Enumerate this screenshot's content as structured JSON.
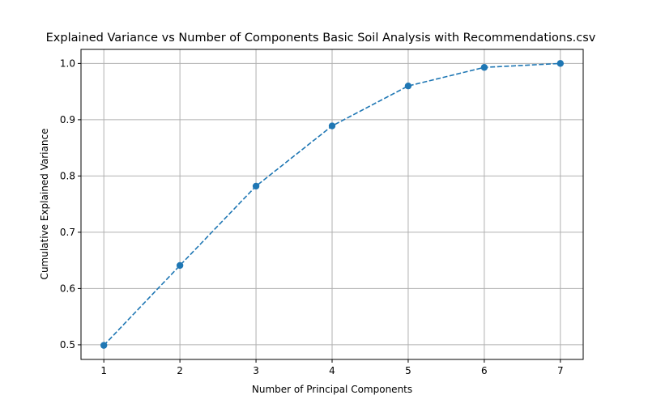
{
  "chart_data": {
    "type": "line",
    "title": "Explained Variance vs Number of Components Basic Soil Analysis with Recommendations.csv",
    "xlabel": "Number of Principal Components",
    "ylabel": "Cumulative Explained Variance",
    "x": [
      1,
      2,
      3,
      4,
      5,
      6,
      7
    ],
    "series": [
      {
        "values": [
          0.499,
          0.641,
          0.782,
          0.889,
          0.96,
          0.993,
          1.0
        ],
        "color": "#1f77b4",
        "line_style": "dashed",
        "marker": "circle"
      }
    ],
    "xticks": [
      1,
      2,
      3,
      4,
      5,
      6,
      7
    ],
    "yticks": [
      0.5,
      0.6,
      0.7,
      0.8,
      0.9,
      1.0
    ],
    "ytick_labels": [
      "0.5",
      "0.6",
      "0.7",
      "0.8",
      "0.9",
      "1.0"
    ],
    "xlim": [
      0.7,
      7.3
    ],
    "ylim": [
      0.474,
      1.025
    ],
    "grid": true,
    "legend": "none"
  }
}
